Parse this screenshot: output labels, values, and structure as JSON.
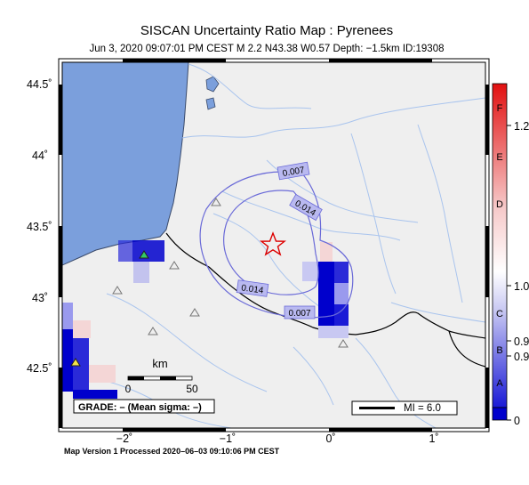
{
  "title": "SISCAN Uncertainty Ratio Map : Pyrenees",
  "subtitle": "Jun  3, 2020 09:07:01 PM CEST   M 2.2   N43.38 W0.57   Depth: −1.5km   ID:19308",
  "footer": "Map Version 1 Processed 2020–06–03 09:10:06 PM CEST",
  "map": {
    "lat_ticks": [
      "44.5˚",
      "44˚",
      "43.5˚",
      "43˚",
      "42.5˚"
    ],
    "lon_ticks": [
      "−2˚",
      "−1˚",
      "0˚",
      "1˚"
    ],
    "contours": [
      "0.007",
      "0.014",
      "0.014",
      "0.007"
    ],
    "scalebar": {
      "title": "km",
      "left": "0",
      "right": "50"
    },
    "grade": "GRADE: – (Mean sigma: –)",
    "mi_legend": "MI = 6.0",
    "epicenter_icon": "star-icon",
    "station_icon": "triangle-icon"
  },
  "colorbar": {
    "letters": [
      "F",
      "E",
      "D",
      "C",
      "B",
      "A"
    ],
    "values": [
      "1.2",
      "1.0",
      "0.9",
      "0.9",
      "0"
    ],
    "colors": {
      "low": "#0000cc",
      "mid": "#ffffff",
      "high": "#dd0000"
    }
  },
  "colors": {
    "sea": "#7b9fdc",
    "land": "#efefef",
    "river": "#a9c4ee",
    "contour": "#6a6ad8",
    "epicenter": "#dd0000"
  }
}
